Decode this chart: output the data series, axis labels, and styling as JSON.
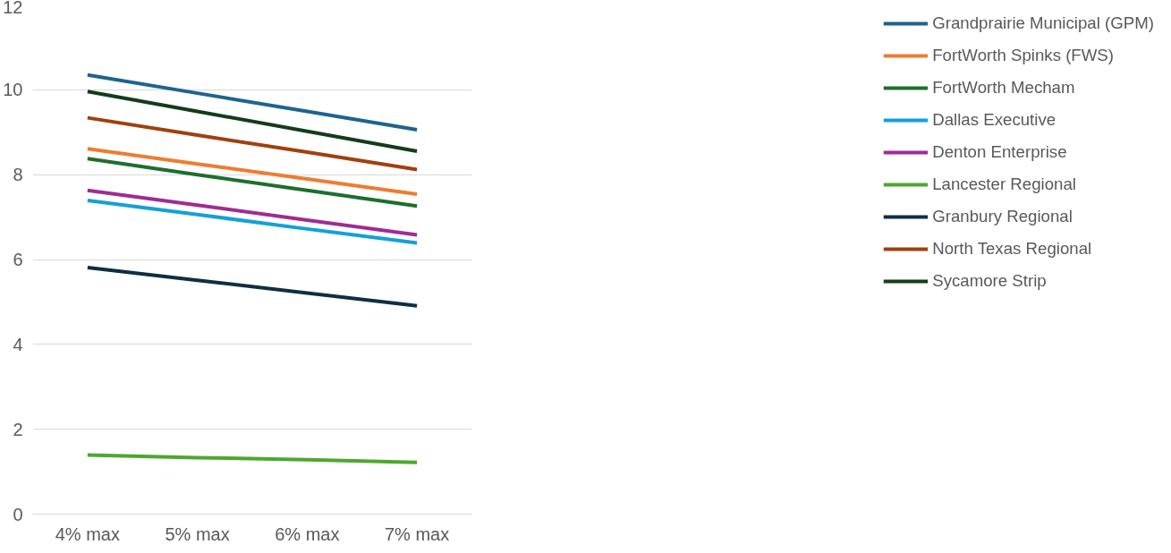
{
  "chart_data": {
    "type": "line",
    "categories": [
      "4% max",
      "5% max",
      "6% max",
      "7% max"
    ],
    "series": [
      {
        "name": "Grandprairie Municipal (GPM)",
        "color": "#1f6391",
        "values": [
          10.35,
          9.92,
          9.49,
          9.06
        ]
      },
      {
        "name": "FortWorth Spinks (FWS)",
        "color": "#ed7d31",
        "values": [
          8.61,
          8.25,
          7.9,
          7.54
        ]
      },
      {
        "name": "FortWorth Mecham",
        "color": "#1e6e2e",
        "values": [
          8.38,
          8.0,
          7.63,
          7.26
        ]
      },
      {
        "name": "Dallas Executive",
        "color": "#14a0d8",
        "values": [
          7.39,
          7.06,
          6.72,
          6.39
        ]
      },
      {
        "name": "Denton Enterprise",
        "color": "#a02b93",
        "values": [
          7.63,
          7.28,
          6.93,
          6.58
        ]
      },
      {
        "name": "Lancester Regional",
        "color": "#4ea72e",
        "values": [
          1.39,
          1.33,
          1.28,
          1.22
        ]
      },
      {
        "name": "Granbury Regional",
        "color": "#0e2f44",
        "values": [
          5.81,
          5.51,
          5.21,
          4.91
        ]
      },
      {
        "name": "North Texas Regional",
        "color": "#a0400f",
        "values": [
          9.34,
          8.93,
          8.53,
          8.12
        ]
      },
      {
        "name": "Sycamore Strip",
        "color": "#123d1a",
        "values": [
          9.96,
          9.49,
          9.02,
          8.55
        ]
      }
    ],
    "ylim": [
      0,
      12
    ],
    "yticks": [
      0,
      2,
      4,
      6,
      8,
      10,
      12
    ],
    "grid": "y",
    "legend": "right",
    "marker": "none",
    "line_style": "solid"
  }
}
